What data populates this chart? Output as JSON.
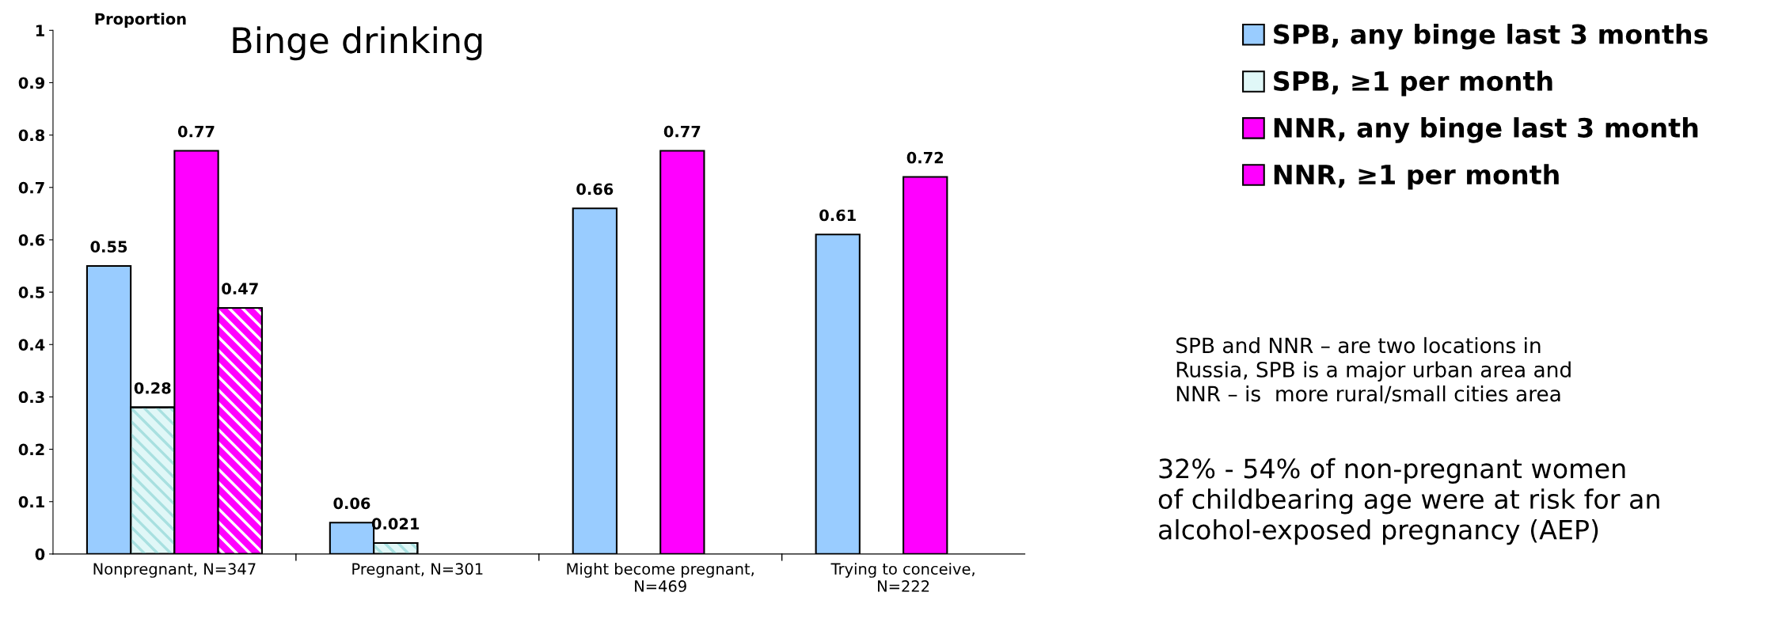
{
  "chart_data": {
    "type": "bar",
    "title": "Binge drinking",
    "ylabel": "Proportion",
    "categories": [
      "Nonpregnant, N=347",
      "Pregnant, N=301",
      "Might become pregnant,\nN=469",
      "Trying to conceive,\nN=222"
    ],
    "series": [
      {
        "name": "SPB, any binge last 3 months",
        "color": "#99ccff",
        "values": [
          0.55,
          0.06,
          0.66,
          0.61
        ]
      },
      {
        "name": "SPB, ≥1 per month",
        "color": "#e0f7f7",
        "values": [
          0.28,
          0.021,
          null,
          null
        ]
      },
      {
        "name": "NNR, any binge last 3 month",
        "color": "#ff00ff",
        "values": [
          0.77,
          null,
          0.77,
          0.72
        ]
      },
      {
        "name": "NNR, ≥1 per month",
        "color": "#ff00ff",
        "values": [
          0.47,
          null,
          null,
          null
        ]
      }
    ],
    "ylim": [
      0,
      1
    ],
    "yticks": [
      0,
      0.1,
      0.2,
      0.3,
      0.4,
      0.5,
      0.6,
      0.7,
      0.8,
      0.9,
      1
    ],
    "data_labels": true,
    "grid": false,
    "legend": "right",
    "annotations": [
      "SPB and NNR – are two locations in\nRussia, SPB is a major urban area and\nNNR – is  more rural/small cities area",
      "32% - 54% of non-pregnant women\nof childbearing age were at risk for an\nalcohol-exposed pregnancy (AEP)"
    ]
  }
}
